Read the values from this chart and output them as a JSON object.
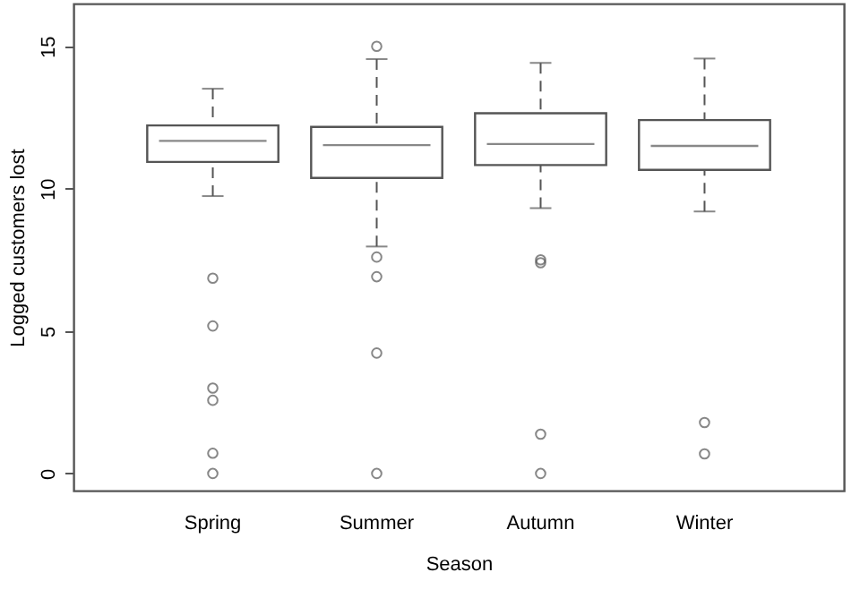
{
  "chart_data": {
    "type": "box",
    "xlabel": "Season",
    "ylabel": "Logged customers lost",
    "categories": [
      "Spring",
      "Summer",
      "Autumn",
      "Winter"
    ],
    "boxes": [
      {
        "low": 9.74,
        "q1": 10.94,
        "median": 11.68,
        "q3": 12.22,
        "high": 13.51,
        "outliers": [
          6.86,
          5.18,
          3.0,
          2.57,
          0.71,
          0.0
        ]
      },
      {
        "low": 7.97,
        "q1": 10.38,
        "median": 11.53,
        "q3": 12.17,
        "high": 14.55,
        "outliers": [
          15.0,
          7.6,
          6.91,
          4.23,
          0.0
        ]
      },
      {
        "low": 9.32,
        "q1": 10.83,
        "median": 11.57,
        "q3": 12.65,
        "high": 14.42,
        "outliers": [
          7.5,
          7.4,
          1.38,
          0.0
        ]
      },
      {
        "low": 9.2,
        "q1": 10.66,
        "median": 11.5,
        "q3": 12.41,
        "high": 14.57,
        "outliers": [
          1.79,
          0.69
        ]
      }
    ],
    "ylim": [
      -0.6,
      16.5
    ],
    "yticks": [
      0,
      5,
      10,
      15
    ],
    "grid": false
  }
}
